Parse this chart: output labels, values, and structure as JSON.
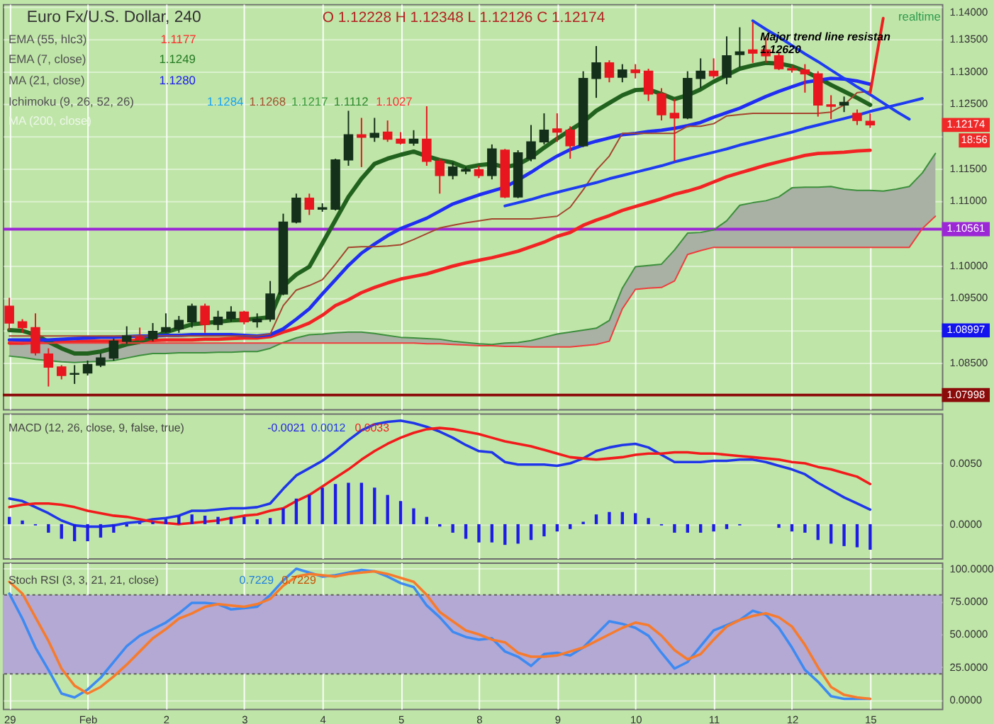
{
  "chart_data": [
    {
      "type": "candlestick",
      "title": "Euro Fx/U.S. Dollar, 240",
      "subtitle": "O 1.12228 H 1.12348 L 1.12126 C 1.12174",
      "categories": [
        null,
        null,
        null,
        null,
        null,
        null,
        null,
        null,
        null,
        null,
        null,
        null,
        null,
        null,
        null,
        null,
        null,
        null,
        null,
        null,
        null,
        null,
        null,
        null,
        null,
        null,
        null,
        null,
        null,
        null,
        null,
        null,
        null,
        null,
        null,
        null,
        null,
        null,
        null,
        null,
        null,
        null,
        null,
        null,
        null,
        null,
        null,
        null,
        null,
        null,
        null,
        null,
        null,
        null,
        null,
        null,
        null,
        null,
        null,
        null,
        null,
        null,
        null,
        null,
        null,
        null,
        null,
        null,
        null,
        null,
        null,
        null
      ],
      "ohlc": [
        [
          1.0937,
          1.095,
          1.09,
          1.0911
        ],
        [
          1.0913,
          1.0917,
          1.0896,
          1.0904
        ],
        [
          1.0904,
          1.0926,
          1.0861,
          1.0865
        ],
        [
          1.0863,
          1.0872,
          1.0813,
          1.0843
        ],
        [
          1.0843,
          1.0846,
          1.0824,
          1.083
        ],
        [
          1.0832,
          1.0846,
          1.0817,
          1.0833
        ],
        [
          1.0834,
          1.0853,
          1.083,
          1.0847
        ],
        [
          1.0846,
          1.0864,
          1.0843,
          1.0857
        ],
        [
          1.0857,
          1.0887,
          1.0853,
          1.0883
        ],
        [
          1.0883,
          1.0906,
          1.0879,
          1.0891
        ],
        [
          1.0889,
          1.0904,
          1.0883,
          1.0885
        ],
        [
          1.0887,
          1.0911,
          1.0883,
          1.0898
        ],
        [
          1.0898,
          1.0926,
          1.0896,
          1.0904
        ],
        [
          1.0902,
          1.0922,
          1.0896,
          1.0915
        ],
        [
          1.0913,
          1.0941,
          1.0904,
          1.0937
        ],
        [
          1.0937,
          1.0941,
          1.0896,
          1.0909
        ],
        [
          1.0909,
          1.093,
          1.09,
          1.092
        ],
        [
          1.0918,
          1.0937,
          1.0913,
          1.0928
        ],
        [
          1.0928,
          1.093,
          1.0909,
          1.0913
        ],
        [
          1.0913,
          1.0926,
          1.0904,
          1.0917
        ],
        [
          1.0917,
          1.0976,
          1.0913,
          1.0956
        ],
        [
          1.0956,
          1.108,
          1.0954,
          1.1067
        ],
        [
          1.1067,
          1.1111,
          1.1065,
          1.1104
        ],
        [
          1.1104,
          1.1111,
          1.1078,
          1.1087
        ],
        [
          1.1087,
          1.1096,
          1.1083,
          1.1089
        ],
        [
          1.1087,
          1.1165,
          1.1085,
          1.1163
        ],
        [
          1.1163,
          1.1239,
          1.1154,
          1.1202
        ],
        [
          1.1202,
          1.1228,
          1.1152,
          1.1198
        ],
        [
          1.1198,
          1.1228,
          1.1191,
          1.1204
        ],
        [
          1.1206,
          1.1224,
          1.1191,
          1.1195
        ],
        [
          1.1195,
          1.1206,
          1.1187,
          1.1189
        ],
        [
          1.1189,
          1.1209,
          1.1185,
          1.1195
        ],
        [
          1.1195,
          1.1246,
          1.1154,
          1.1161
        ],
        [
          1.1161,
          1.1165,
          1.1111,
          1.1139
        ],
        [
          1.1139,
          1.1159,
          1.1133,
          1.1152
        ],
        [
          1.1146,
          1.1152,
          1.1141,
          1.1148
        ],
        [
          1.1148,
          1.1154,
          1.1135,
          1.1139
        ],
        [
          1.1139,
          1.1187,
          1.1133,
          1.118
        ],
        [
          1.1178,
          1.118,
          1.1104,
          1.1106
        ],
        [
          1.1106,
          1.1178,
          1.1104,
          1.1174
        ],
        [
          1.1165,
          1.1217,
          1.1161,
          1.1191
        ],
        [
          1.1191,
          1.1235,
          1.1187,
          1.1209
        ],
        [
          1.1211,
          1.1235,
          1.1191,
          1.1206
        ],
        [
          1.1209,
          1.1215,
          1.1165,
          1.1185
        ],
        [
          1.1185,
          1.13,
          1.1183,
          1.1289
        ],
        [
          1.1289,
          1.1339,
          1.1259,
          1.1313
        ],
        [
          1.1313,
          1.1317,
          1.1283,
          1.1291
        ],
        [
          1.1291,
          1.1311,
          1.1283,
          1.1302
        ],
        [
          1.1302,
          1.1311,
          1.1289,
          1.1298
        ],
        [
          1.13,
          1.1304,
          1.1254,
          1.1265
        ],
        [
          1.1265,
          1.1274,
          1.1224,
          1.1233
        ],
        [
          1.1235,
          1.1257,
          1.1161,
          1.1228
        ],
        [
          1.1228,
          1.13,
          1.1226,
          1.1289
        ],
        [
          1.1289,
          1.132,
          1.1274,
          1.13
        ],
        [
          1.13,
          1.132,
          1.1289,
          1.1293
        ],
        [
          1.1291,
          1.1354,
          1.128,
          1.1324
        ],
        [
          1.1326,
          1.1368,
          1.1306,
          1.133
        ],
        [
          1.1333,
          1.1376,
          1.1313,
          1.1328
        ],
        [
          1.1333,
          1.1354,
          1.1313,
          1.1324
        ],
        [
          1.1324,
          1.1328,
          1.1302,
          1.1304
        ],
        [
          1.1304,
          1.1309,
          1.1298,
          1.1302
        ],
        [
          1.1302,
          1.1311,
          1.1267,
          1.1296
        ],
        [
          1.1296,
          1.13,
          1.123,
          1.1248
        ],
        [
          1.1248,
          1.1263,
          1.1226,
          1.1246
        ],
        [
          1.1248,
          1.1261,
          1.1237,
          1.1252
        ],
        [
          1.1235,
          1.1241,
          1.1217,
          1.1224
        ],
        [
          1.12228,
          1.12348,
          1.12126,
          1.12174
        ],
        null,
        null,
        null,
        null,
        null
      ],
      "colors": [
        "#e8161e",
        "#e8161e",
        "#e8161e",
        "#e8161e",
        "#e8161e",
        "#15301a",
        "#15301a",
        "#15301a",
        "#15301a",
        "#15301a",
        "#e8161e",
        "#15301a",
        "#15301a",
        "#15301a",
        "#15301a",
        "#e8161e",
        "#15301a",
        "#15301a",
        "#e8161e",
        "#15301a",
        "#15301a",
        "#15301a",
        "#15301a",
        "#e8161e",
        "#15301a",
        "#15301a",
        "#15301a",
        "#e8161e",
        "#15301a",
        "#e8161e",
        "#e8161e",
        "#15301a",
        "#e8161e",
        "#e8161e",
        "#15301a",
        "#15301a",
        "#e8161e",
        "#15301a",
        "#e8161e",
        "#15301a",
        "#15301a",
        "#15301a",
        "#e8161e",
        "#e8161e",
        "#15301a",
        "#15301a",
        "#e8161e",
        "#15301a",
        "#e8161e",
        "#e8161e",
        "#e8161e",
        "#e8161e",
        "#15301a",
        "#15301a",
        "#e8161e",
        "#15301a",
        "#15301a",
        "#e8161e",
        "#e8161e",
        "#e8161e",
        "#e8161e",
        "#e8161e",
        "#e8161e",
        "#e8161e",
        "#15301a",
        "#e8161e",
        "#e8161e",
        null,
        null,
        null,
        null,
        null
      ],
      "series": [
        {
          "type": "line",
          "color": "#f22323",
          "values": [
            1.088,
            1.088,
            1.0881,
            1.0881,
            1.0882,
            1.0882,
            1.0883,
            1.0883,
            1.0883,
            1.0884,
            1.0884,
            1.0884,
            1.0885,
            1.0885,
            1.0885,
            1.0886,
            1.0886,
            1.0887,
            1.0888,
            1.0888,
            1.089,
            1.0897,
            1.0903,
            1.0911,
            1.0923,
            1.0938,
            1.0947,
            1.0958,
            1.0966,
            1.0973,
            1.0979,
            1.0983,
            1.0987,
            1.0993,
            1.0999,
            1.1004,
            1.1008,
            1.1012,
            1.1017,
            1.1022,
            1.1029,
            1.1036,
            1.1045,
            1.1051,
            1.1062,
            1.107,
            1.1077,
            1.1085,
            1.1091,
            1.1097,
            1.1103,
            1.111,
            1.1115,
            1.1121,
            1.1129,
            1.1137,
            1.1143,
            1.1149,
            1.1155,
            1.116,
            1.1165,
            1.117,
            1.1173,
            1.1174,
            1.1175,
            1.1177,
            1.1178,
            null,
            null,
            null,
            null,
            null
          ]
        },
        {
          "type": "line",
          "color": "#22621f",
          "values": [
            1.09,
            1.0899,
            1.0893,
            1.0882,
            1.0872,
            1.0864,
            1.0864,
            1.0867,
            1.0872,
            1.0878,
            1.0882,
            1.0889,
            1.0897,
            1.0903,
            1.0909,
            1.0911,
            1.0913,
            1.0915,
            1.0916,
            1.0918,
            1.092,
            1.0968,
            1.0986,
            1.0998,
            1.1034,
            1.107,
            1.1106,
            1.1134,
            1.1157,
            1.1165,
            1.1171,
            1.1176,
            1.1169,
            1.1163,
            1.1159,
            1.1151,
            1.1155,
            1.1157,
            1.1152,
            1.1156,
            1.1167,
            1.1182,
            1.1196,
            1.1209,
            1.1222,
            1.1239,
            1.1251,
            1.1263,
            1.1271,
            1.1272,
            1.1265,
            1.1257,
            1.1263,
            1.1272,
            1.1284,
            1.1294,
            1.1304,
            1.1309,
            1.1313,
            1.1312,
            1.1308,
            1.13,
            1.129,
            1.1279,
            1.1269,
            1.1259,
            1.1248,
            null,
            null,
            null,
            null,
            null
          ]
        },
        {
          "type": "line",
          "color": "#1f2ef2",
          "values": [
            1.0885,
            1.0885,
            1.0885,
            1.0885,
            1.0886,
            1.0887,
            1.0888,
            1.0889,
            1.0889,
            1.089,
            1.0891,
            1.0891,
            1.0892,
            1.0892,
            1.0893,
            1.0893,
            1.0893,
            1.0893,
            1.0892,
            1.0891,
            1.0893,
            1.0902,
            1.0917,
            1.0933,
            1.0956,
            1.0978,
            1.1,
            1.1019,
            1.1033,
            1.1046,
            1.1057,
            1.1065,
            1.1073,
            1.1084,
            1.1095,
            1.1102,
            1.1109,
            1.1115,
            1.1121,
            1.1132,
            1.1144,
            1.1157,
            1.1169,
            1.1179,
            1.1186,
            1.1192,
            1.1197,
            1.1202,
            1.1204,
            1.1207,
            1.1209,
            1.1212,
            1.1216,
            1.1221,
            1.1229,
            1.1236,
            1.1243,
            1.1252,
            1.1261,
            1.1269,
            1.1276,
            1.1283,
            1.1286,
            1.1289,
            1.1288,
            1.1285,
            1.128,
            null,
            null,
            null,
            null,
            null
          ]
        },
        {
          "type": "line",
          "color": "#a5452e",
          "values": [
            1.0891,
            1.0891,
            1.0891,
            1.0891,
            1.0891,
            1.0891,
            1.0891,
            1.0891,
            1.0891,
            1.0891,
            1.0891,
            1.0891,
            1.0891,
            1.0891,
            1.0891,
            1.0891,
            1.0891,
            1.0891,
            1.0891,
            1.0891,
            1.0894,
            1.0938,
            1.0962,
            1.0969,
            1.0978,
            1.1002,
            1.1028,
            1.1029,
            1.1029,
            1.103,
            1.1032,
            1.104,
            1.1049,
            1.1058,
            1.1062,
            1.1066,
            1.1069,
            1.1072,
            1.1072,
            1.1072,
            1.1072,
            1.1074,
            1.1076,
            1.109,
            1.1117,
            1.1147,
            1.1169,
            1.1204,
            1.1204,
            1.1204,
            1.1204,
            1.1204,
            1.1215,
            1.1215,
            1.1219,
            1.1231,
            1.1233,
            1.1235,
            1.1235,
            1.1235,
            1.1235,
            1.1235,
            1.1235,
            1.1237,
            1.1248,
            1.1267,
            1.1269,
            null,
            null,
            null,
            null,
            null
          ]
        },
        {
          "type": "line",
          "color": "#3c8f3c",
          "values": [
            1.086,
            1.0858,
            1.0855,
            1.0853,
            1.0851,
            1.085,
            1.0851,
            1.0852,
            1.0853,
            1.0857,
            1.0861,
            1.0864,
            1.0864,
            1.0865,
            1.0865,
            1.0865,
            1.0866,
            1.0866,
            1.0867,
            1.0867,
            1.0872,
            1.0881,
            1.0888,
            1.0893,
            1.0894,
            1.0896,
            1.0897,
            1.0897,
            1.0895,
            1.0892,
            1.0889,
            1.0888,
            1.0887,
            1.0886,
            1.0883,
            1.0881,
            1.0879,
            1.0878,
            1.088,
            1.0881,
            1.0884,
            1.0889,
            1.0894,
            1.0897,
            1.09,
            1.0903,
            1.0915,
            1.0965,
            1.0998,
            1.1,
            1.1002,
            1.1024,
            1.105,
            1.1051,
            1.1055,
            1.1069,
            1.1093,
            1.1097,
            1.11,
            1.1106,
            1.112,
            1.1121,
            1.1121,
            1.1122,
            1.1118,
            1.1116,
            1.1116,
            1.1115,
            1.1118,
            1.1122,
            1.1143,
            1.1173
          ],
          "lower": [
            1.086,
            1.0858,
            1.0855,
            1.0853,
            1.0851,
            1.085,
            1.0851,
            1.0852,
            1.0853,
            1.0857,
            1.0861,
            1.0864,
            1.0864,
            1.0865,
            1.0865,
            1.0865,
            1.0866,
            1.0866,
            1.0867,
            1.0867,
            1.0872,
            1.088,
            1.088,
            1.088,
            1.088,
            1.088,
            1.088,
            1.088,
            1.088,
            1.088,
            1.088,
            1.088,
            1.0879,
            1.0879,
            1.0878,
            1.0877,
            1.0876,
            1.0876,
            1.0875,
            1.0875,
            1.0874,
            1.0874,
            1.0874,
            1.0874,
            1.0876,
            1.0878,
            1.0883,
            1.0933,
            1.0963,
            1.0965,
            1.0966,
            1.0976,
            1.1017,
            1.1023,
            1.1028,
            1.1028,
            1.1028,
            1.1028,
            1.1028,
            1.1028,
            1.1028,
            1.1028,
            1.1028,
            1.1028,
            1.1028,
            1.1028,
            1.1028,
            1.1028,
            1.1028,
            1.1028,
            1.1057,
            1.1076
          ],
          "upper": [
            1.0882,
            1.0881,
            1.088,
            1.088,
            1.088,
            1.088,
            1.088,
            1.088,
            1.088,
            1.088,
            1.088,
            1.088,
            1.088,
            1.088,
            1.088,
            1.088,
            1.088,
            1.088,
            1.088,
            1.088,
            1.088,
            1.0881,
            1.0888,
            1.0893,
            1.0894,
            1.0896,
            1.0897,
            1.0897,
            1.0895,
            1.0892,
            1.0889,
            1.0888,
            1.0887,
            1.0886,
            1.0883,
            1.0881,
            1.0879,
            1.0878,
            1.088,
            1.0881,
            1.0884,
            1.0889,
            1.0894,
            1.0897,
            1.09,
            1.0903,
            1.0915,
            1.0965,
            1.0998,
            1.1,
            1.1002,
            1.1024,
            1.105,
            1.1051,
            1.1055,
            1.1069,
            1.1093,
            1.1097,
            1.11,
            1.1106,
            1.112,
            1.1121,
            1.1121,
            1.1122,
            1.1118,
            1.1116,
            1.1116,
            1.1115,
            1.1118,
            1.1122,
            1.1143,
            1.1173
          ]
        },
        {
          "type": "line",
          "color": "#f03c3c",
          "values": [
            1.0882,
            1.0881,
            1.088,
            1.088,
            1.088,
            1.088,
            1.088,
            1.088,
            1.088,
            1.088,
            1.088,
            1.088,
            1.088,
            1.088,
            1.088,
            1.088,
            1.088,
            1.088,
            1.088,
            1.088,
            1.088,
            1.088,
            1.088,
            1.088,
            1.088,
            1.088,
            1.088,
            1.088,
            1.088,
            1.088,
            1.088,
            1.088,
            1.0879,
            1.0879,
            1.0878,
            1.0877,
            1.0876,
            1.0876,
            1.0875,
            1.0875,
            1.0874,
            1.0874,
            1.0874,
            1.0874,
            1.0876,
            1.0878,
            1.0883,
            1.0933,
            1.0963,
            1.0965,
            1.0966,
            1.0976,
            1.1017,
            1.1023,
            1.1028,
            1.1028,
            1.1028,
            1.1028,
            1.1028,
            1.1028,
            1.1028,
            1.1028,
            1.1028,
            1.1028,
            1.1028,
            1.1028,
            1.1028,
            1.1028,
            1.1028,
            1.1028,
            1.1057,
            1.1076
          ]
        },
        {
          "type": "line",
          "color": "#1e3cf0",
          "values": [
            null,
            null,
            null,
            null,
            null,
            null,
            null,
            null,
            null,
            null,
            null,
            null,
            null,
            null,
            null,
            null,
            null,
            null,
            null,
            null,
            null,
            null,
            null,
            null,
            null,
            null,
            null,
            null,
            null,
            null,
            null,
            null,
            null,
            null,
            null,
            null,
            null,
            null,
            1.1092,
            1.1097,
            1.1102,
            1.1108,
            1.1113,
            1.1118,
            1.1123,
            1.1128,
            1.1134,
            1.1139,
            1.1144,
            1.1149,
            1.1154,
            1.116,
            1.1165,
            1.117,
            1.1175,
            1.118,
            1.1186,
            1.1191,
            1.1196,
            1.1201,
            1.1206,
            1.1212,
            1.1217,
            1.1222,
            1.1227,
            1.1232,
            1.1238,
            1.1243,
            1.1248,
            1.1253,
            1.1258,
            null
          ]
        },
        {
          "type": "line",
          "color": "#1e3cf0",
          "values": [
            null,
            null,
            null,
            null,
            null,
            null,
            null,
            null,
            null,
            null,
            null,
            null,
            null,
            null,
            null,
            null,
            null,
            null,
            null,
            null,
            null,
            null,
            null,
            null,
            null,
            null,
            null,
            null,
            null,
            null,
            null,
            null,
            null,
            null,
            null,
            null,
            null,
            null,
            null,
            null,
            null,
            null,
            null,
            null,
            null,
            null,
            null,
            null,
            null,
            null,
            null,
            null,
            null,
            null,
            null,
            null,
            null,
            1.1378,
            1.1365,
            1.1353,
            1.134,
            1.1327,
            1.1315,
            1.1302,
            1.1289,
            1.1276,
            1.1264,
            1.1251,
            1.1238,
            1.1226,
            null,
            null
          ]
        },
        {
          "type": "line",
          "color": "#f01e1e",
          "values": [
            null,
            null,
            null,
            null,
            null,
            null,
            null,
            null,
            null,
            null,
            null,
            null,
            null,
            null,
            null,
            null,
            null,
            null,
            null,
            null,
            null,
            null,
            null,
            null,
            null,
            null,
            null,
            null,
            null,
            null,
            null,
            null,
            null,
            null,
            null,
            null,
            null,
            null,
            null,
            null,
            null,
            null,
            null,
            null,
            null,
            null,
            null,
            null,
            null,
            null,
            null,
            null,
            null,
            null,
            null,
            null,
            null,
            null,
            null,
            null,
            null,
            null,
            null,
            null,
            null,
            null,
            1.1267,
            1.1382,
            null,
            null,
            null,
            null
          ]
        }
      ],
      "ref_lines": [
        {
          "axis": "y",
          "value": 1.10561,
          "label": "1.10561",
          "color": "#9b27d6"
        },
        {
          "axis": "y",
          "value": 1.07998,
          "label": "1.07998",
          "color": "#8b0a0a"
        }
      ],
      "annotations": [
        "EMA (55, hlc3)",
        "1.1177",
        "EMA (7, close)",
        "1.1249",
        "MA (21, close)",
        "1.1280",
        "Ichimoku (9, 26, 52, 26)",
        "1.1284",
        "1.1268",
        "1.1217",
        "1.1112",
        "1.1027",
        "MA (200, close)",
        "Major trend line resistan",
        "1.12620",
        "realtime",
        "1.12174",
        "18:56",
        "1.08997"
      ],
      "ylim": [
        1.0778,
        1.1404
      ],
      "yticks": [
        {
          "value": 1.085,
          "label": "1.08500"
        },
        {
          "value": 1.09,
          "label": null
        },
        {
          "value": 1.095,
          "label": "1.09500"
        },
        {
          "value": 1.1,
          "label": "1.10000"
        },
        {
          "value": 1.11,
          "label": "1.11000"
        },
        {
          "value": 1.115,
          "label": "1.11500"
        },
        {
          "value": 1.12,
          "label": null
        },
        {
          "value": 1.125,
          "label": "1.12500"
        },
        {
          "value": 1.13,
          "label": "1.13000"
        },
        {
          "value": 1.135,
          "label": "1.13500"
        },
        {
          "value": 1.14,
          "label": "1.14000"
        }
      ],
      "tick_labels": "y",
      "grid": true
    },
    {
      "type": "bar",
      "title": "MACD (12, 26, close, 9, false, true)",
      "categories": [
        null,
        null,
        null,
        null,
        null,
        null,
        null,
        null,
        null,
        null,
        null,
        null,
        null,
        null,
        null,
        null,
        null,
        null,
        null,
        null,
        null,
        null,
        null,
        null,
        null,
        null,
        null,
        null,
        null,
        null,
        null,
        null,
        null,
        null,
        null,
        null,
        null,
        null,
        null,
        null,
        null,
        null,
        null,
        null,
        null,
        null,
        null,
        null,
        null,
        null,
        null,
        null,
        null,
        null,
        null,
        null,
        null,
        null,
        null,
        null,
        null,
        null,
        null,
        null,
        null,
        null,
        null,
        null,
        null,
        null,
        null,
        null
      ],
      "series": [
        {
          "type": "bar",
          "color": "#1c1ce6",
          "values": [
            0.0006,
            0.0003,
            -0.0001,
            -0.0007,
            -0.0012,
            -0.0014,
            -0.0014,
            -0.0011,
            -0.0007,
            -0.0002,
            0.0001,
            0.0002,
            0.0004,
            0.0007,
            0.0008,
            0.0007,
            0.0006,
            0.0006,
            0.0006,
            0.0004,
            0.0005,
            0.0013,
            0.0021,
            0.0024,
            0.003,
            0.0033,
            0.0034,
            0.0034,
            0.003,
            0.0024,
            0.0019,
            0.0013,
            0.0006,
            -0.0002,
            -0.0007,
            -0.0012,
            -0.0015,
            -0.0015,
            -0.0017,
            -0.0016,
            -0.0013,
            -0.001,
            -0.0006,
            -0.0004,
            0.0002,
            0.0008,
            0.001,
            0.001,
            0.0009,
            0.0005,
            -0.0001,
            -0.0007,
            -0.0007,
            -0.0007,
            -0.0006,
            -0.0004,
            -0.0001,
            null,
            null,
            -0.0003,
            -0.0006,
            -0.0007,
            -0.0013,
            -0.0016,
            -0.0018,
            -0.0019,
            -0.0021,
            null,
            null,
            null,
            null,
            null
          ]
        },
        {
          "type": "line",
          "color": "#1f36e8",
          "values": [
            0.0021,
            0.0019,
            0.0014,
            0.0009,
            0.0003,
            -0.0001,
            -0.0002,
            -0.0002,
            -0.0001,
            0.0001,
            0.0002,
            0.0004,
            0.0005,
            0.0007,
            0.0011,
            0.0011,
            0.0012,
            0.0013,
            0.0013,
            0.0014,
            0.0017,
            0.0029,
            0.004,
            0.0046,
            0.0052,
            0.006,
            0.0069,
            0.0077,
            0.0082,
            0.0084,
            0.0085,
            0.0083,
            0.008,
            0.0076,
            0.0071,
            0.0065,
            0.006,
            0.0059,
            0.0051,
            0.0049,
            0.0049,
            0.0049,
            0.0048,
            0.005,
            0.0054,
            0.006,
            0.0063,
            0.0065,
            0.0066,
            0.0063,
            0.0057,
            0.0051,
            0.0051,
            0.0051,
            0.0052,
            0.0052,
            0.0053,
            0.0053,
            0.0051,
            0.0048,
            0.0045,
            0.0041,
            0.0034,
            0.0028,
            0.0022,
            0.0017,
            0.0012,
            null,
            null,
            null,
            null,
            null
          ]
        },
        {
          "type": "line",
          "color": "#f21b1b",
          "values": [
            0.0014,
            0.0016,
            0.0017,
            0.0017,
            0.0016,
            0.0014,
            0.0011,
            0.0009,
            0.0007,
            0.0006,
            0.0004,
            0.0002,
            0.0001,
            0.0,
            0.0001,
            0.0002,
            0.0003,
            0.0005,
            0.0007,
            0.0008,
            0.0011,
            0.0013,
            0.0019,
            0.0024,
            0.0031,
            0.0038,
            0.0045,
            0.0053,
            0.006,
            0.0066,
            0.0071,
            0.0075,
            0.0078,
            0.0079,
            0.0078,
            0.0076,
            0.0074,
            0.0071,
            0.0068,
            0.0066,
            0.0064,
            0.0061,
            0.0058,
            0.0055,
            0.0054,
            0.0053,
            0.0054,
            0.0055,
            0.0057,
            0.0058,
            0.0058,
            0.0059,
            0.0059,
            0.0058,
            0.0058,
            0.0057,
            0.0056,
            0.0055,
            0.0054,
            0.0053,
            0.0051,
            0.005,
            0.0047,
            0.0045,
            0.0042,
            0.0039,
            0.0033,
            null,
            null,
            null,
            null,
            null
          ]
        }
      ],
      "annotations": [
        "-0.0021",
        "0.0012",
        "0.0033"
      ],
      "ylim": [
        -0.0028,
        0.0091
      ],
      "yticks": [
        {
          "value": 0,
          "label": "0.0000"
        },
        {
          "value": 0.005,
          "label": "0.0050"
        }
      ],
      "tick_labels": "y",
      "grid": true
    },
    {
      "type": "line",
      "title": "Stoch RSI (3, 3, 21, 21, close)",
      "categories": [
        "29",
        null,
        null,
        null,
        null,
        null,
        "Feb",
        null,
        null,
        null,
        null,
        null,
        "2",
        null,
        null,
        null,
        null,
        null,
        "3",
        null,
        null,
        null,
        null,
        null,
        "4",
        null,
        null,
        null,
        null,
        null,
        "5",
        null,
        null,
        null,
        null,
        null,
        "8",
        null,
        null,
        null,
        null,
        null,
        "9",
        null,
        null,
        null,
        null,
        null,
        "10",
        null,
        null,
        null,
        null,
        null,
        "11",
        null,
        null,
        null,
        null,
        null,
        "12",
        null,
        null,
        null,
        null,
        null,
        "15",
        null,
        null,
        null,
        null,
        null
      ],
      "series": [
        {
          "type": "line",
          "color": "#3d8af2",
          "values": [
            81,
            62,
            40,
            23,
            5,
            2,
            8,
            17,
            29,
            41,
            49,
            54,
            59,
            66,
            74,
            74,
            73,
            69,
            70,
            71,
            80,
            91,
            100,
            97,
            94,
            95,
            97,
            99,
            98,
            94,
            89,
            86,
            72,
            63,
            52,
            48,
            46,
            47,
            37,
            33,
            26,
            35,
            36,
            34,
            40,
            50,
            60,
            58,
            55,
            49,
            36,
            24,
            29,
            41,
            53,
            57,
            61,
            68,
            65,
            55,
            40,
            23,
            14,
            3,
            1,
            1,
            1,
            null,
            null,
            null,
            null,
            null
          ]
        },
        {
          "type": "line",
          "color": "#f77b2c",
          "values": [
            90,
            81,
            63,
            45,
            24,
            11,
            5,
            10,
            18,
            27,
            37,
            47,
            54,
            62,
            66,
            71,
            73,
            72,
            71,
            73,
            77,
            87,
            94,
            96,
            95,
            94,
            96,
            97,
            98,
            96,
            93,
            90,
            80,
            67,
            60,
            53,
            50,
            46,
            44,
            36,
            33,
            33,
            34,
            37,
            40,
            45,
            50,
            55,
            59,
            57,
            49,
            38,
            31,
            35,
            46,
            56,
            61,
            64,
            66,
            63,
            56,
            42,
            25,
            10,
            4,
            2,
            1,
            null,
            null,
            null,
            null,
            null
          ]
        }
      ],
      "bands": [
        {
          "axis": "y",
          "from": 20,
          "to": 80,
          "color": "#b3a9d4"
        }
      ],
      "ref_lines": [
        {
          "axis": "y",
          "value": 80,
          "color": "#5f5f5f",
          "line_style": "dotted"
        },
        {
          "axis": "y",
          "value": 20,
          "color": "#5f5f5f",
          "line_style": "dotted"
        }
      ],
      "annotations": [
        "0.7229",
        "0.7229"
      ],
      "ylim": [
        -6.6,
        104.7
      ],
      "yticks": [
        {
          "value": 0,
          "label": "0.0000"
        },
        {
          "value": 25,
          "label": "25.0000"
        },
        {
          "value": 50,
          "label": "50.0000"
        },
        {
          "value": 75,
          "label": "75.0000"
        },
        {
          "value": 100,
          "label": "100.0000"
        }
      ],
      "grid": true
    }
  ]
}
